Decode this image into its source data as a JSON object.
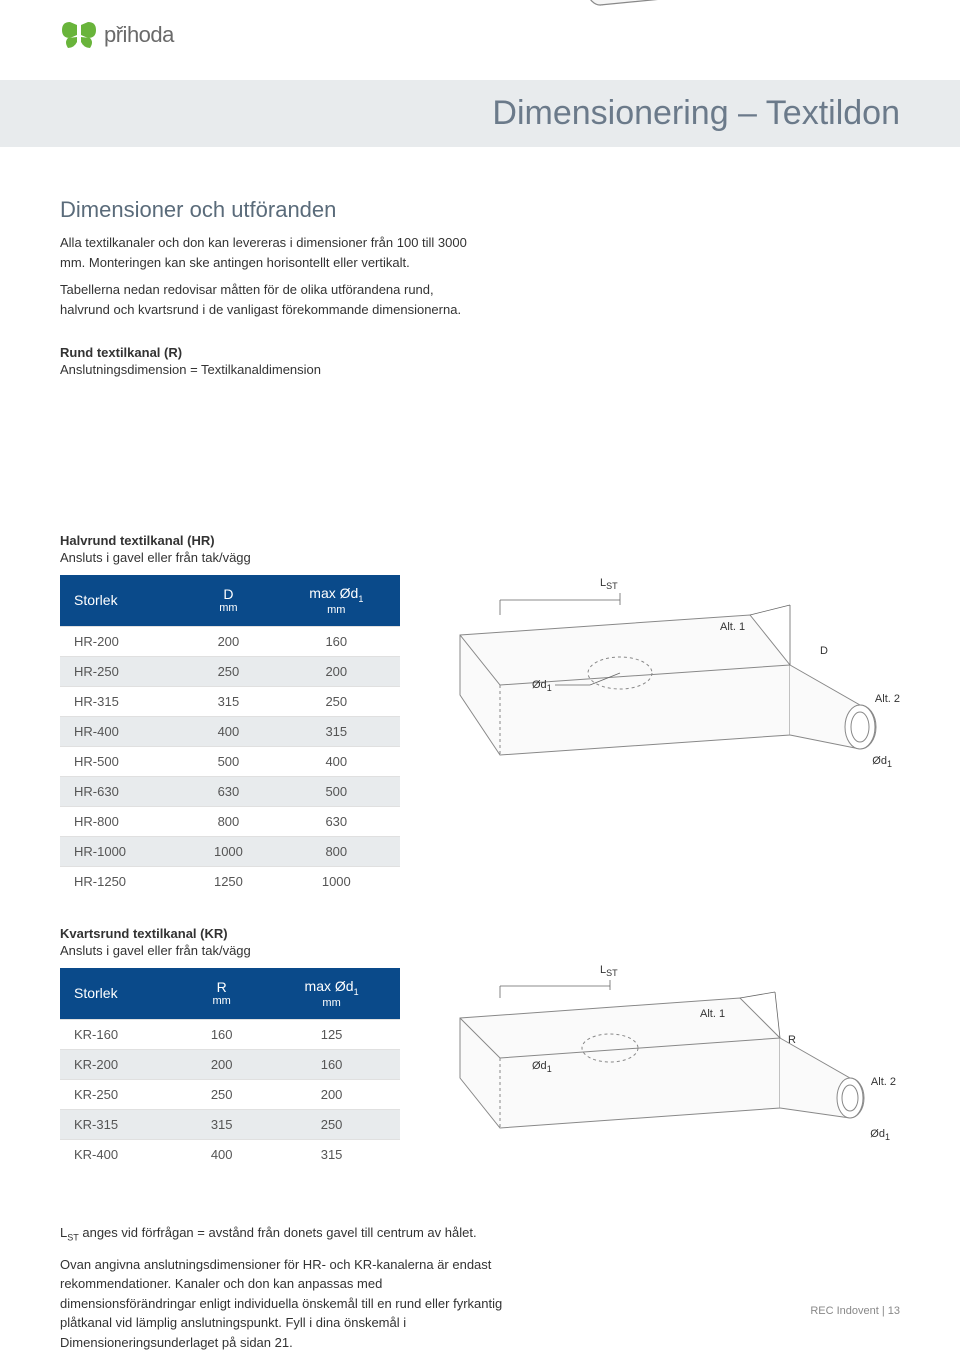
{
  "brand": {
    "name": "přihoda",
    "logo_accent": "#69b43b",
    "logo_text_color": "#6a6a6a"
  },
  "banner": {
    "title": "Dimensionering – Textildon",
    "bg": "#e8ebed",
    "color": "#6b7a8a"
  },
  "intro": {
    "heading": "Dimensioner och utföranden",
    "p1": "Alla textilkanaler och don kan levereras i dimensioner från 100 till 3000 mm. Monteringen kan ske antingen horisontellt eller vertikalt.",
    "p2": "Tabellerna nedan redovisar måtten för de olika utförandena rund, halvrund och kvartsrund i de vanligast förekommande dimensionerna."
  },
  "round": {
    "title": "Rund textilkanal (R)",
    "subtitle": "Anslutningsdimension = Textilkanaldimension"
  },
  "hr": {
    "title": "Halvrund textilkanal (HR)",
    "subtitle": "Ansluts i gavel eller från tak/vägg",
    "columns": [
      "Storlek",
      "D\nmm",
      "max Ød₁\nmm"
    ],
    "rows": [
      [
        "HR-200",
        "200",
        "160"
      ],
      [
        "HR-250",
        "250",
        "200"
      ],
      [
        "HR-315",
        "315",
        "250"
      ],
      [
        "HR-400",
        "400",
        "315"
      ],
      [
        "HR-500",
        "500",
        "400"
      ],
      [
        "HR-630",
        "630",
        "500"
      ],
      [
        "HR-800",
        "800",
        "630"
      ],
      [
        "HR-1000",
        "1000",
        "800"
      ],
      [
        "HR-1250",
        "1250",
        "1000"
      ]
    ]
  },
  "kr": {
    "title": "Kvartsrund textilkanal (KR)",
    "subtitle": "Ansluts i gavel eller från tak/vägg",
    "columns": [
      "Storlek",
      "R\nmm",
      "max Ød₁\nmm"
    ],
    "rows": [
      [
        "KR-160",
        "160",
        "125"
      ],
      [
        "KR-200",
        "200",
        "160"
      ],
      [
        "KR-250",
        "250",
        "200"
      ],
      [
        "KR-315",
        "315",
        "250"
      ],
      [
        "KR-400",
        "400",
        "315"
      ]
    ]
  },
  "diagram_labels": {
    "Lst": "L",
    "Lst_sub": "ST",
    "alt1": "Alt. 1",
    "alt2": "Alt. 2",
    "D": "D",
    "R": "R",
    "Od1": "Ød",
    "Od1_sub": "1"
  },
  "footnotes": {
    "p1_a": "L",
    "p1_sub": "ST",
    "p1_b": " anges vid förfrågan = avstånd från donets gavel till centrum av hålet.",
    "p2": "Ovan angivna anslutningsdimensioner för HR- och KR-kanalerna är endast rekommendationer. Kanaler och don kan anpassas med dimensionsförändringar enligt individuella önskemål till en rund eller fyrkantig plåtkanal vid lämplig anslutningspunkt. Fyll i dina önskemål i Dimensioneringsunderlaget på sidan 21."
  },
  "footer": {
    "text": "REC Indovent  |  13"
  },
  "table_style": {
    "header_bg": "#0a4a8a",
    "header_fg": "#ffffff",
    "row_alt_bg": "#e8ebed",
    "border": "#e0e0e0"
  }
}
